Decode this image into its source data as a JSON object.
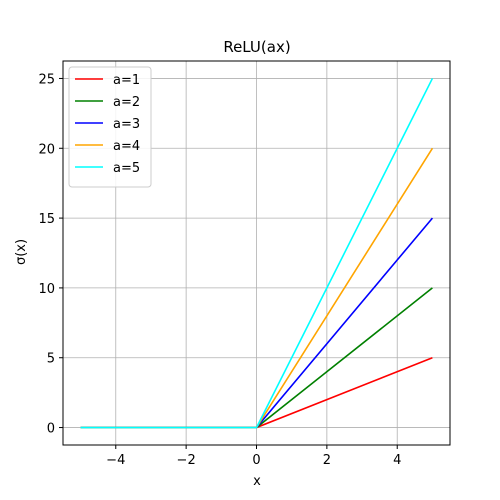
{
  "chart_data": {
    "type": "line",
    "title": "ReLU(ax)",
    "xlabel": "x",
    "ylabel": "σ(x)",
    "xlim": [
      -5.5,
      5.5
    ],
    "ylim": [
      -1.25,
      26.25
    ],
    "xticks": [
      -4,
      -2,
      0,
      2,
      4
    ],
    "xtick_labels": [
      "−4",
      "−2",
      "0",
      "2",
      "4"
    ],
    "yticks": [
      0,
      5,
      10,
      15,
      20,
      25
    ],
    "ytick_labels": [
      "0",
      "5",
      "10",
      "15",
      "20",
      "25"
    ],
    "grid": true,
    "legend_position": "top-left",
    "series": [
      {
        "name": "a=1",
        "color": "#ff0000",
        "x": [
          -5,
          0,
          5
        ],
        "y": [
          0,
          0,
          5
        ]
      },
      {
        "name": "a=2",
        "color": "#008000",
        "x": [
          -5,
          0,
          5
        ],
        "y": [
          0,
          0,
          10
        ]
      },
      {
        "name": "a=3",
        "color": "#0000ff",
        "x": [
          -5,
          0,
          5
        ],
        "y": [
          0,
          0,
          15
        ]
      },
      {
        "name": "a=4",
        "color": "#ffa500",
        "x": [
          -5,
          0,
          5
        ],
        "y": [
          0,
          0,
          20
        ]
      },
      {
        "name": "a=5",
        "color": "#00ffff",
        "x": [
          -5,
          0,
          5
        ],
        "y": [
          0,
          0,
          25
        ]
      }
    ]
  }
}
